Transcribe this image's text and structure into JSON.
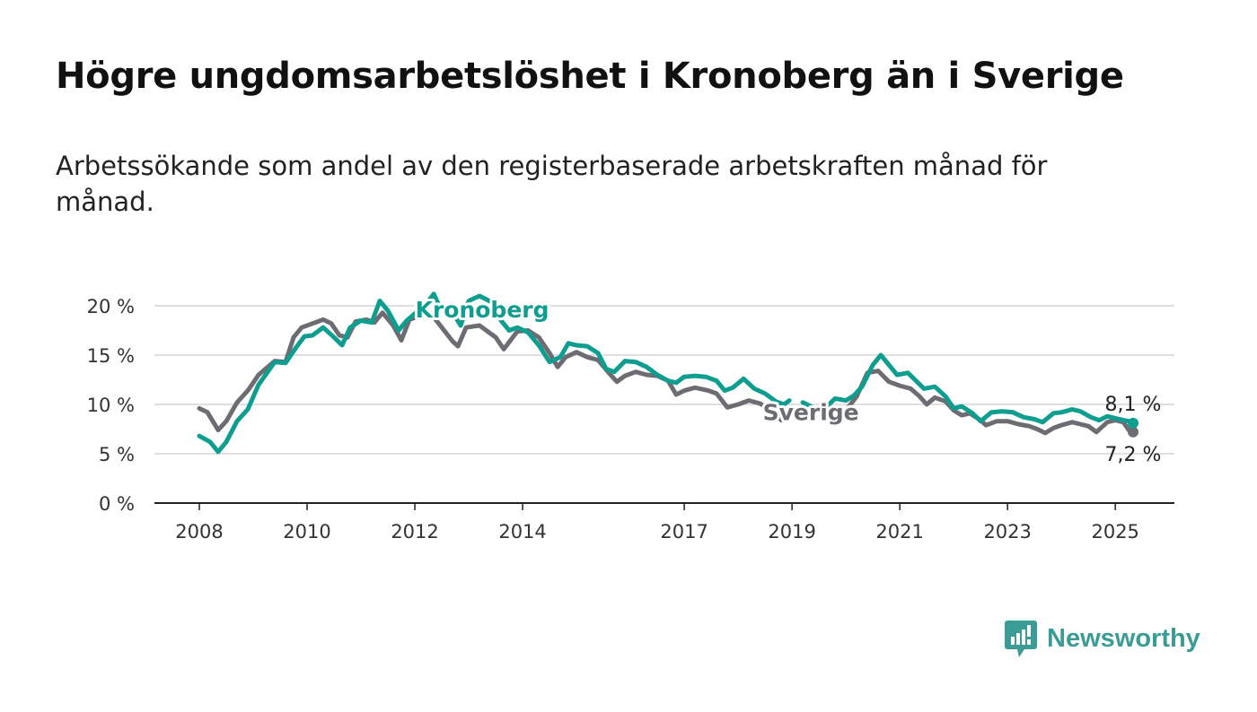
{
  "header": {
    "title": "Högre ungdomsarbetslöshet i Kronoberg än i Sverige",
    "subtitle": "Arbetssökande som andel av den registerbaserade arbetskraften månad för månad."
  },
  "brand": {
    "name": "Newsworthy",
    "color": "#3a9c94",
    "icon": "newsworthy-logo-icon"
  },
  "chart_data": {
    "type": "line",
    "title": "Högre ungdomsarbetslöshet i Kronoberg än i Sverige",
    "subtitle": "Arbetssökande som andel av den registerbaserade arbetskraften månad för månad.",
    "xlabel": "",
    "ylabel": "",
    "xlim": [
      2008.0,
      2025.33
    ],
    "ylim": [
      0,
      20
    ],
    "grid": true,
    "legend": "inline",
    "x_ticks": [
      {
        "value": 2008,
        "label": "2008"
      },
      {
        "value": 2010,
        "label": "2010"
      },
      {
        "value": 2012,
        "label": "2012"
      },
      {
        "value": 2014,
        "label": "2014"
      },
      {
        "value": 2017,
        "label": "2017"
      },
      {
        "value": 2019,
        "label": "2019"
      },
      {
        "value": 2021,
        "label": "2021"
      },
      {
        "value": 2023,
        "label": "2023"
      },
      {
        "value": 2025,
        "label": "2025"
      }
    ],
    "y_ticks": [
      {
        "value": 0,
        "label": "0 %"
      },
      {
        "value": 5,
        "label": "5 %"
      },
      {
        "value": 10,
        "label": "10 %"
      },
      {
        "value": 15,
        "label": "15 %"
      },
      {
        "value": 20,
        "label": "20 %"
      }
    ],
    "series": [
      {
        "name": "Sverige",
        "color": "#6e6c72",
        "end_label": "7,2 %",
        "label_at": [
          2019.35,
          8.4
        ],
        "points": [
          [
            2008.0,
            9.6
          ],
          [
            2008.15,
            9.2
          ],
          [
            2008.35,
            7.4
          ],
          [
            2008.5,
            8.3
          ],
          [
            2008.7,
            10.2
          ],
          [
            2008.9,
            11.4
          ],
          [
            2009.1,
            13.0
          ],
          [
            2009.4,
            14.4
          ],
          [
            2009.6,
            14.3
          ],
          [
            2009.75,
            16.8
          ],
          [
            2009.9,
            17.8
          ],
          [
            2010.1,
            18.2
          ],
          [
            2010.3,
            18.6
          ],
          [
            2010.45,
            18.2
          ],
          [
            2010.6,
            17.0
          ],
          [
            2010.75,
            16.8
          ],
          [
            2010.9,
            18.4
          ],
          [
            2011.1,
            18.6
          ],
          [
            2011.25,
            18.3
          ],
          [
            2011.4,
            19.3
          ],
          [
            2011.6,
            18.0
          ],
          [
            2011.75,
            16.5
          ],
          [
            2011.9,
            18.6
          ],
          [
            2012.1,
            19.0
          ],
          [
            2012.3,
            19.2
          ],
          [
            2012.5,
            17.8
          ],
          [
            2012.7,
            16.4
          ],
          [
            2012.8,
            15.9
          ],
          [
            2012.95,
            17.8
          ],
          [
            2013.2,
            18.0
          ],
          [
            2013.5,
            16.8
          ],
          [
            2013.65,
            15.6
          ],
          [
            2013.9,
            17.4
          ],
          [
            2014.1,
            17.5
          ],
          [
            2014.3,
            16.8
          ],
          [
            2014.5,
            15.2
          ],
          [
            2014.65,
            13.8
          ],
          [
            2014.8,
            14.8
          ],
          [
            2015.0,
            15.3
          ],
          [
            2015.2,
            14.8
          ],
          [
            2015.4,
            14.5
          ],
          [
            2015.6,
            13.2
          ],
          [
            2015.75,
            12.3
          ],
          [
            2015.9,
            12.9
          ],
          [
            2016.1,
            13.3
          ],
          [
            2016.3,
            13.0
          ],
          [
            2016.5,
            12.9
          ],
          [
            2016.7,
            12.4
          ],
          [
            2016.85,
            11.0
          ],
          [
            2017.0,
            11.4
          ],
          [
            2017.2,
            11.7
          ],
          [
            2017.45,
            11.4
          ],
          [
            2017.6,
            11.1
          ],
          [
            2017.8,
            9.7
          ],
          [
            2018.0,
            10.0
          ],
          [
            2018.2,
            10.4
          ],
          [
            2018.4,
            10.1
          ],
          [
            2018.6,
            9.5
          ],
          [
            2018.8,
            8.4
          ],
          [
            2018.95,
            8.6
          ]
        ],
        "points_b": [
          [
            2020.0,
            9.4
          ],
          [
            2020.2,
            10.8
          ],
          [
            2020.4,
            13.2
          ],
          [
            2020.6,
            13.4
          ],
          [
            2020.8,
            12.3
          ],
          [
            2021.0,
            11.9
          ],
          [
            2021.2,
            11.6
          ],
          [
            2021.35,
            10.9
          ],
          [
            2021.5,
            10.0
          ],
          [
            2021.65,
            10.7
          ],
          [
            2021.85,
            10.3
          ],
          [
            2022.0,
            9.4
          ],
          [
            2022.15,
            8.9
          ],
          [
            2022.3,
            9.1
          ],
          [
            2022.5,
            8.4
          ],
          [
            2022.6,
            7.9
          ],
          [
            2022.8,
            8.3
          ],
          [
            2023.0,
            8.3
          ],
          [
            2023.2,
            8.0
          ],
          [
            2023.4,
            7.8
          ],
          [
            2023.55,
            7.5
          ],
          [
            2023.7,
            7.1
          ],
          [
            2023.85,
            7.6
          ],
          [
            2024.0,
            7.9
          ],
          [
            2024.2,
            8.2
          ],
          [
            2024.35,
            8.0
          ],
          [
            2024.5,
            7.8
          ],
          [
            2024.65,
            7.2
          ],
          [
            2024.85,
            8.2
          ],
          [
            2025.0,
            8.4
          ],
          [
            2025.15,
            8.2
          ],
          [
            2025.25,
            7.4
          ],
          [
            2025.33,
            7.2
          ]
        ]
      },
      {
        "name": "Kronoberg",
        "color": "#0e9e90",
        "end_label": "8,1 %",
        "label_at": [
          2013.25,
          18.8
        ],
        "points": [
          [
            2008.0,
            6.8
          ],
          [
            2008.2,
            6.2
          ],
          [
            2008.35,
            5.2
          ],
          [
            2008.5,
            6.2
          ],
          [
            2008.7,
            8.3
          ],
          [
            2008.9,
            9.5
          ],
          [
            2009.1,
            12.0
          ],
          [
            2009.4,
            14.3
          ],
          [
            2009.6,
            14.2
          ],
          [
            2009.8,
            15.8
          ],
          [
            2009.95,
            16.9
          ],
          [
            2010.1,
            17.0
          ],
          [
            2010.3,
            17.8
          ],
          [
            2010.5,
            16.8
          ],
          [
            2010.65,
            16.0
          ],
          [
            2010.8,
            17.8
          ],
          [
            2011.0,
            18.5
          ],
          [
            2011.2,
            18.3
          ],
          [
            2011.35,
            20.5
          ],
          [
            2011.5,
            19.5
          ],
          [
            2011.7,
            17.5
          ],
          [
            2011.85,
            18.5
          ],
          [
            2012.0,
            19.2
          ],
          [
            2012.2,
            20.1
          ],
          [
            2012.35,
            21.2
          ],
          [
            2012.45,
            20.0
          ],
          [
            2012.7,
            19.3
          ],
          [
            2012.85,
            18.0
          ],
          [
            2013.0,
            20.5
          ],
          [
            2013.2,
            21.0
          ],
          [
            2013.45,
            20.3
          ],
          [
            2013.6,
            18.5
          ],
          [
            2013.75,
            17.5
          ],
          [
            2013.9,
            17.8
          ],
          [
            2014.1,
            17.3
          ],
          [
            2014.3,
            16.0
          ],
          [
            2014.5,
            14.3
          ],
          [
            2014.7,
            14.8
          ],
          [
            2014.85,
            16.2
          ],
          [
            2015.0,
            16.0
          ],
          [
            2015.2,
            15.9
          ],
          [
            2015.4,
            15.2
          ],
          [
            2015.55,
            13.6
          ],
          [
            2015.7,
            13.3
          ],
          [
            2015.9,
            14.4
          ],
          [
            2016.1,
            14.3
          ],
          [
            2016.3,
            13.8
          ],
          [
            2016.5,
            13.0
          ],
          [
            2016.7,
            12.4
          ],
          [
            2016.85,
            12.2
          ],
          [
            2017.0,
            12.8
          ],
          [
            2017.2,
            12.9
          ],
          [
            2017.4,
            12.8
          ],
          [
            2017.6,
            12.4
          ],
          [
            2017.75,
            11.4
          ],
          [
            2017.9,
            11.7
          ],
          [
            2018.1,
            12.6
          ],
          [
            2018.3,
            11.6
          ],
          [
            2018.5,
            11.1
          ],
          [
            2018.7,
            10.3
          ],
          [
            2018.85,
            10.0
          ],
          [
            2018.95,
            10.4
          ]
        ],
        "points_b": [
          [
            2019.2,
            10.2
          ],
          [
            2019.35,
            9.8
          ],
          [
            2019.5,
            9.3
          ],
          [
            2019.65,
            9.8
          ],
          [
            2019.8,
            10.6
          ],
          [
            2020.0,
            10.4
          ],
          [
            2020.15,
            10.9
          ],
          [
            2020.3,
            11.8
          ],
          [
            2020.5,
            14.0
          ],
          [
            2020.65,
            15.0
          ],
          [
            2020.8,
            14.0
          ],
          [
            2020.95,
            13.0
          ],
          [
            2021.15,
            13.2
          ],
          [
            2021.3,
            12.4
          ],
          [
            2021.45,
            11.6
          ],
          [
            2021.65,
            11.8
          ],
          [
            2021.85,
            10.8
          ],
          [
            2022.0,
            9.6
          ],
          [
            2022.15,
            9.8
          ],
          [
            2022.35,
            9.1
          ],
          [
            2022.5,
            8.3
          ],
          [
            2022.7,
            9.2
          ],
          [
            2022.9,
            9.3
          ],
          [
            2023.1,
            9.2
          ],
          [
            2023.3,
            8.7
          ],
          [
            2023.5,
            8.5
          ],
          [
            2023.65,
            8.2
          ],
          [
            2023.85,
            9.1
          ],
          [
            2024.0,
            9.2
          ],
          [
            2024.2,
            9.5
          ],
          [
            2024.35,
            9.3
          ],
          [
            2024.55,
            8.7
          ],
          [
            2024.7,
            8.4
          ],
          [
            2024.85,
            8.8
          ],
          [
            2025.0,
            8.6
          ],
          [
            2025.15,
            8.4
          ],
          [
            2025.25,
            8.3
          ],
          [
            2025.33,
            8.1
          ]
        ]
      }
    ]
  }
}
